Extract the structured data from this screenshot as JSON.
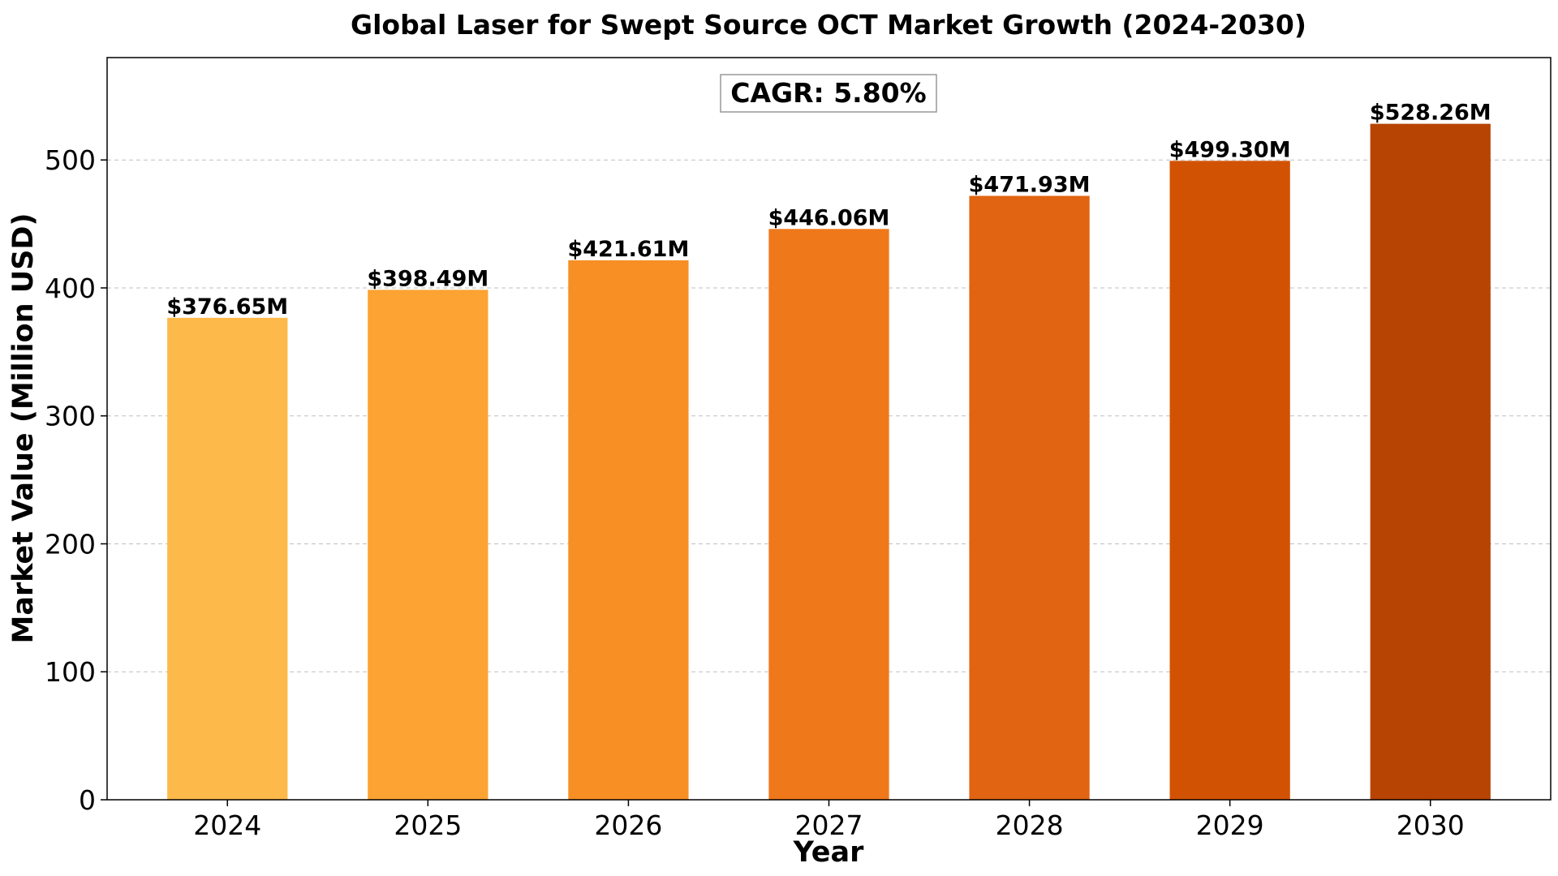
{
  "chart_data": {
    "type": "bar",
    "title": "Global Laser for Swept Source OCT Market Growth (2024-2030)",
    "xlabel": "Year",
    "ylabel": "Market Value (Million USD)",
    "categories": [
      "2024",
      "2025",
      "2026",
      "2027",
      "2028",
      "2029",
      "2030"
    ],
    "values": [
      376.65,
      398.49,
      421.61,
      446.06,
      471.93,
      499.3,
      528.26
    ],
    "data_labels": [
      "$376.65M",
      "$398.49M",
      "$421.61M",
      "$446.06M",
      "$471.93M",
      "$499.30M",
      "$528.26M"
    ],
    "bar_colors": [
      "#fdb94a",
      "#fca333",
      "#f78f24",
      "#ef781b",
      "#e06411",
      "#d25204",
      "#b84403"
    ],
    "ylim": [
      0,
      580
    ],
    "yticks": [
      0,
      100,
      200,
      300,
      400,
      500
    ],
    "grid": "horizontal-dashed",
    "annotation": "CAGR: 5.80%"
  }
}
